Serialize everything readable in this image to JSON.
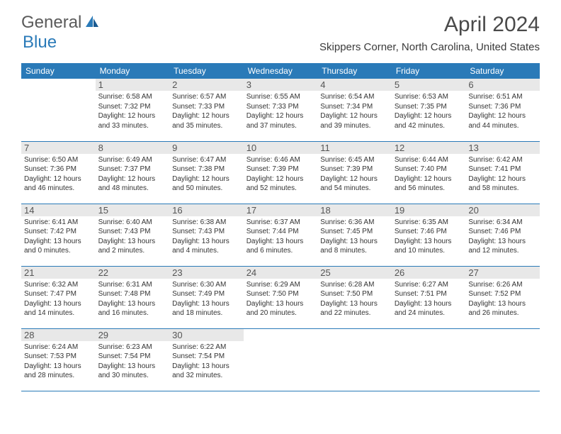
{
  "logo": {
    "part1": "General",
    "part2": "Blue"
  },
  "title": "April 2024",
  "location": "Skippers Corner, North Carolina, United States",
  "colors": {
    "header_bg": "#2a7ab8",
    "header_text": "#ffffff",
    "daynum_bg": "#e8e8e8",
    "border": "#2a7ab8",
    "logo_gray": "#5a5a5a",
    "logo_blue": "#2a7ab8"
  },
  "day_headers": [
    "Sunday",
    "Monday",
    "Tuesday",
    "Wednesday",
    "Thursday",
    "Friday",
    "Saturday"
  ],
  "weeks": [
    [
      {
        "n": "",
        "sunrise": "",
        "sunset": "",
        "daylight": ""
      },
      {
        "n": "1",
        "sunrise": "Sunrise: 6:58 AM",
        "sunset": "Sunset: 7:32 PM",
        "daylight": "Daylight: 12 hours and 33 minutes."
      },
      {
        "n": "2",
        "sunrise": "Sunrise: 6:57 AM",
        "sunset": "Sunset: 7:33 PM",
        "daylight": "Daylight: 12 hours and 35 minutes."
      },
      {
        "n": "3",
        "sunrise": "Sunrise: 6:55 AM",
        "sunset": "Sunset: 7:33 PM",
        "daylight": "Daylight: 12 hours and 37 minutes."
      },
      {
        "n": "4",
        "sunrise": "Sunrise: 6:54 AM",
        "sunset": "Sunset: 7:34 PM",
        "daylight": "Daylight: 12 hours and 39 minutes."
      },
      {
        "n": "5",
        "sunrise": "Sunrise: 6:53 AM",
        "sunset": "Sunset: 7:35 PM",
        "daylight": "Daylight: 12 hours and 42 minutes."
      },
      {
        "n": "6",
        "sunrise": "Sunrise: 6:51 AM",
        "sunset": "Sunset: 7:36 PM",
        "daylight": "Daylight: 12 hours and 44 minutes."
      }
    ],
    [
      {
        "n": "7",
        "sunrise": "Sunrise: 6:50 AM",
        "sunset": "Sunset: 7:36 PM",
        "daylight": "Daylight: 12 hours and 46 minutes."
      },
      {
        "n": "8",
        "sunrise": "Sunrise: 6:49 AM",
        "sunset": "Sunset: 7:37 PM",
        "daylight": "Daylight: 12 hours and 48 minutes."
      },
      {
        "n": "9",
        "sunrise": "Sunrise: 6:47 AM",
        "sunset": "Sunset: 7:38 PM",
        "daylight": "Daylight: 12 hours and 50 minutes."
      },
      {
        "n": "10",
        "sunrise": "Sunrise: 6:46 AM",
        "sunset": "Sunset: 7:39 PM",
        "daylight": "Daylight: 12 hours and 52 minutes."
      },
      {
        "n": "11",
        "sunrise": "Sunrise: 6:45 AM",
        "sunset": "Sunset: 7:39 PM",
        "daylight": "Daylight: 12 hours and 54 minutes."
      },
      {
        "n": "12",
        "sunrise": "Sunrise: 6:44 AM",
        "sunset": "Sunset: 7:40 PM",
        "daylight": "Daylight: 12 hours and 56 minutes."
      },
      {
        "n": "13",
        "sunrise": "Sunrise: 6:42 AM",
        "sunset": "Sunset: 7:41 PM",
        "daylight": "Daylight: 12 hours and 58 minutes."
      }
    ],
    [
      {
        "n": "14",
        "sunrise": "Sunrise: 6:41 AM",
        "sunset": "Sunset: 7:42 PM",
        "daylight": "Daylight: 13 hours and 0 minutes."
      },
      {
        "n": "15",
        "sunrise": "Sunrise: 6:40 AM",
        "sunset": "Sunset: 7:43 PM",
        "daylight": "Daylight: 13 hours and 2 minutes."
      },
      {
        "n": "16",
        "sunrise": "Sunrise: 6:38 AM",
        "sunset": "Sunset: 7:43 PM",
        "daylight": "Daylight: 13 hours and 4 minutes."
      },
      {
        "n": "17",
        "sunrise": "Sunrise: 6:37 AM",
        "sunset": "Sunset: 7:44 PM",
        "daylight": "Daylight: 13 hours and 6 minutes."
      },
      {
        "n": "18",
        "sunrise": "Sunrise: 6:36 AM",
        "sunset": "Sunset: 7:45 PM",
        "daylight": "Daylight: 13 hours and 8 minutes."
      },
      {
        "n": "19",
        "sunrise": "Sunrise: 6:35 AM",
        "sunset": "Sunset: 7:46 PM",
        "daylight": "Daylight: 13 hours and 10 minutes."
      },
      {
        "n": "20",
        "sunrise": "Sunrise: 6:34 AM",
        "sunset": "Sunset: 7:46 PM",
        "daylight": "Daylight: 13 hours and 12 minutes."
      }
    ],
    [
      {
        "n": "21",
        "sunrise": "Sunrise: 6:32 AM",
        "sunset": "Sunset: 7:47 PM",
        "daylight": "Daylight: 13 hours and 14 minutes."
      },
      {
        "n": "22",
        "sunrise": "Sunrise: 6:31 AM",
        "sunset": "Sunset: 7:48 PM",
        "daylight": "Daylight: 13 hours and 16 minutes."
      },
      {
        "n": "23",
        "sunrise": "Sunrise: 6:30 AM",
        "sunset": "Sunset: 7:49 PM",
        "daylight": "Daylight: 13 hours and 18 minutes."
      },
      {
        "n": "24",
        "sunrise": "Sunrise: 6:29 AM",
        "sunset": "Sunset: 7:50 PM",
        "daylight": "Daylight: 13 hours and 20 minutes."
      },
      {
        "n": "25",
        "sunrise": "Sunrise: 6:28 AM",
        "sunset": "Sunset: 7:50 PM",
        "daylight": "Daylight: 13 hours and 22 minutes."
      },
      {
        "n": "26",
        "sunrise": "Sunrise: 6:27 AM",
        "sunset": "Sunset: 7:51 PM",
        "daylight": "Daylight: 13 hours and 24 minutes."
      },
      {
        "n": "27",
        "sunrise": "Sunrise: 6:26 AM",
        "sunset": "Sunset: 7:52 PM",
        "daylight": "Daylight: 13 hours and 26 minutes."
      }
    ],
    [
      {
        "n": "28",
        "sunrise": "Sunrise: 6:24 AM",
        "sunset": "Sunset: 7:53 PM",
        "daylight": "Daylight: 13 hours and 28 minutes."
      },
      {
        "n": "29",
        "sunrise": "Sunrise: 6:23 AM",
        "sunset": "Sunset: 7:54 PM",
        "daylight": "Daylight: 13 hours and 30 minutes."
      },
      {
        "n": "30",
        "sunrise": "Sunrise: 6:22 AM",
        "sunset": "Sunset: 7:54 PM",
        "daylight": "Daylight: 13 hours and 32 minutes."
      },
      {
        "n": "",
        "sunrise": "",
        "sunset": "",
        "daylight": ""
      },
      {
        "n": "",
        "sunrise": "",
        "sunset": "",
        "daylight": ""
      },
      {
        "n": "",
        "sunrise": "",
        "sunset": "",
        "daylight": ""
      },
      {
        "n": "",
        "sunrise": "",
        "sunset": "",
        "daylight": ""
      }
    ]
  ]
}
